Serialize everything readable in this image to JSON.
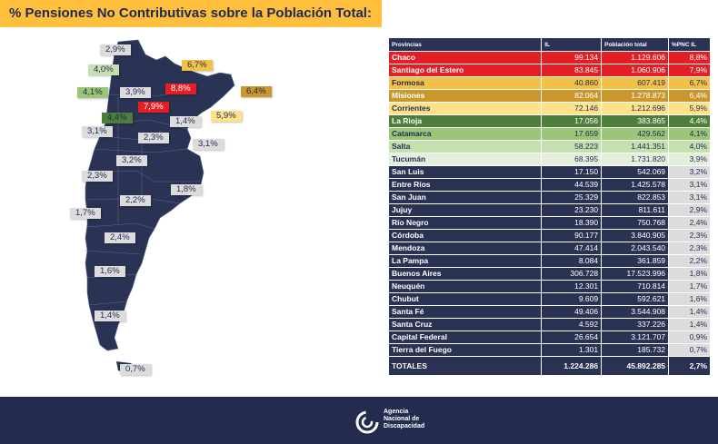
{
  "header": {
    "title": "% Pensiones No Contributivas sobre la Población Total:"
  },
  "colors": {
    "red": "#e31e24",
    "orange": "#f3c147",
    "dark_orange": "#c9972c",
    "pale_yellow": "#ffe18a",
    "green": "#4e7e3b",
    "light_green": "#9bc577",
    "pale_green": "#d3e6c3",
    "grey": "#dcdcdc",
    "navy": "#2b3354",
    "map_fill": "#2b3354"
  },
  "map_labels": [
    {
      "text": "2,9%",
      "color": "#dcdcdc"
    },
    {
      "text": "4,0%",
      "color": "#c5dfae"
    },
    {
      "text": "6,7%",
      "color": "#f3c147"
    },
    {
      "text": "4,1%",
      "color": "#9bc577"
    },
    {
      "text": "3,9%",
      "color": "#dcdcdc"
    },
    {
      "text": "8,8%",
      "color": "#e31e24"
    },
    {
      "text": "6,4%",
      "color": "#c9972c"
    },
    {
      "text": "4,4%",
      "color": "#4e7e3b"
    },
    {
      "text": "7,9%",
      "color": "#e31e24"
    },
    {
      "text": "1,4%",
      "color": "#dcdcdc"
    },
    {
      "text": "5,9%",
      "color": "#ffe18a"
    },
    {
      "text": "3,1%",
      "color": "#dcdcdc"
    },
    {
      "text": "2,3%",
      "color": "#dcdcdc"
    },
    {
      "text": "3,1%",
      "color": "#dcdcdc"
    },
    {
      "text": "3,2%",
      "color": "#dcdcdc"
    },
    {
      "text": "2,3%",
      "color": "#dcdcdc"
    },
    {
      "text": "1,8%",
      "color": "#dcdcdc"
    },
    {
      "text": "2,2%",
      "color": "#dcdcdc"
    },
    {
      "text": "1,7%",
      "color": "#dcdcdc"
    },
    {
      "text": "2,4%",
      "color": "#dcdcdc"
    },
    {
      "text": "1,6%",
      "color": "#dcdcdc"
    },
    {
      "text": "1,4%",
      "color": "#dcdcdc"
    },
    {
      "text": "0,7%",
      "color": "#dcdcdc"
    }
  ],
  "table": {
    "headers": [
      "Provincias",
      "IL",
      "Población total",
      "%PNC IL"
    ],
    "rows": [
      {
        "prov": "Chaco",
        "il": "99.134",
        "pob": "1.129.606",
        "pct": "8,8%",
        "color": "#e31e24"
      },
      {
        "prov": "Santiago del Estero",
        "il": "83.845",
        "pob": "1.060.906",
        "pct": "7,9%",
        "color": "#e31e24"
      },
      {
        "prov": "Formosa",
        "il": "40.860",
        "pob": "607.419",
        "pct": "6,7%",
        "color": "#f3c147"
      },
      {
        "prov": "Misiones",
        "il": "82.064",
        "pob": "1.278.873",
        "pct": "6,4%",
        "color": "#c9972c"
      },
      {
        "prov": "Corrientes",
        "il": "72.146",
        "pob": "1.212.696",
        "pct": "5,9%",
        "color": "#ffe18a"
      },
      {
        "prov": "La Rioja",
        "il": "17.056",
        "pob": "383.865",
        "pct": "4,4%",
        "color": "#4e7e3b"
      },
      {
        "prov": "Catamarca",
        "il": "17.659",
        "pob": "429.562",
        "pct": "4,1%",
        "color": "#9bc577"
      },
      {
        "prov": "Salta",
        "il": "58.223",
        "pob": "1.441.351",
        "pct": "4,0%",
        "color": "#c5dfae"
      },
      {
        "prov": "Tucumán",
        "il": "68.395",
        "pob": "1.731.820",
        "pct": "3,9%",
        "color": "#e3eedb"
      },
      {
        "prov": "San Luis",
        "il": "17.150",
        "pob": "542.069",
        "pct": "3,2%",
        "color": "#dcdcdc"
      },
      {
        "prov": "Entre Ríos",
        "il": "44.539",
        "pob": "1.425.578",
        "pct": "3,1%",
        "color": "#dcdcdc"
      },
      {
        "prov": "San Juan",
        "il": "25.329",
        "pob": "822.853",
        "pct": "3,1%",
        "color": "#dcdcdc"
      },
      {
        "prov": "Jujuy",
        "il": "23.230",
        "pob": "811.611",
        "pct": "2,9%",
        "color": "#dcdcdc"
      },
      {
        "prov": "Río Negro",
        "il": "18.390",
        "pob": "750.768",
        "pct": "2,4%",
        "color": "#dcdcdc"
      },
      {
        "prov": "Córdoba",
        "il": "90.177",
        "pob": "3.840.905",
        "pct": "2,3%",
        "color": "#dcdcdc"
      },
      {
        "prov": "Mendoza",
        "il": "47.414",
        "pob": "2.043.540",
        "pct": "2,3%",
        "color": "#dcdcdc"
      },
      {
        "prov": "La Pampa",
        "il": "8.084",
        "pob": "361.859",
        "pct": "2,2%",
        "color": "#dcdcdc"
      },
      {
        "prov": "Buenos Aires",
        "il": "306.728",
        "pob": "17.523.996",
        "pct": "1,8%",
        "color": "#dcdcdc"
      },
      {
        "prov": "Neuquén",
        "il": "12.301",
        "pob": "710.814",
        "pct": "1,7%",
        "color": "#dcdcdc"
      },
      {
        "prov": "Chubut",
        "il": "9.609",
        "pob": "592.621",
        "pct": "1,6%",
        "color": "#dcdcdc"
      },
      {
        "prov": "Santa Fé",
        "il": "49.406",
        "pob": "3.544.908",
        "pct": "1,4%",
        "color": "#dcdcdc"
      },
      {
        "prov": "Santa Cruz",
        "il": "4.592",
        "pob": "337.226",
        "pct": "1,4%",
        "color": "#dcdcdc"
      },
      {
        "prov": "Capital Federal",
        "il": "26.654",
        "pob": "3.121.707",
        "pct": "0,9%",
        "color": "#dcdcdc"
      },
      {
        "prov": "Tierra del Fuego",
        "il": "1.301",
        "pob": "185.732",
        "pct": "0,7%",
        "color": "#dcdcdc"
      }
    ],
    "totals": {
      "label": "TOTALES",
      "il": "1.224.286",
      "pob": "45.892.285",
      "pct": "2,7%"
    }
  },
  "footer": {
    "logo_line1": "Agencia",
    "logo_line2": "Nacional de",
    "logo_line3": "Discapacidad"
  }
}
